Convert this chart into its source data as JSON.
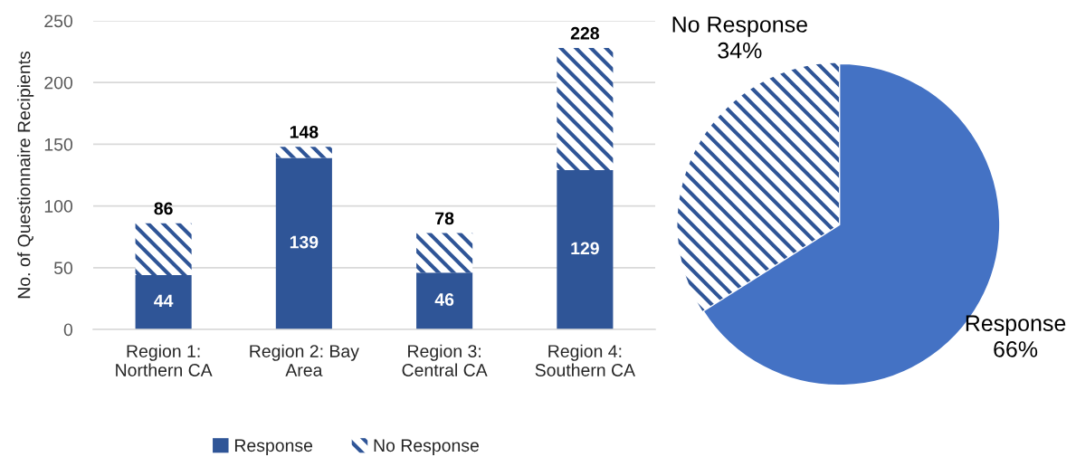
{
  "chart_data": [
    {
      "type": "bar",
      "stacked": true,
      "ylabel": "No. of Questionnaire Recipients",
      "categories": [
        "Region 1:\nNorthern CA",
        "Region 2: Bay\nArea",
        "Region 3:\nCentral CA",
        "Region 4:\nSouthern CA"
      ],
      "series": [
        {
          "name": "Response",
          "color": "#2f5597",
          "values": [
            44,
            139,
            46,
            129
          ],
          "value_labels": [
            "44",
            "139",
            "46",
            "129"
          ]
        },
        {
          "name": "No Response",
          "color": "#2f5597",
          "values": [
            42,
            9,
            32,
            99
          ]
        }
      ],
      "totals": [
        "86",
        "148",
        "78",
        "228"
      ],
      "ylim": [
        0,
        250
      ],
      "yticks": [
        0,
        50,
        100,
        150,
        200,
        250
      ],
      "grid": "y",
      "legend": "bottom"
    },
    {
      "type": "pie",
      "categories": [
        "Response",
        "No Response"
      ],
      "values": [
        66,
        34
      ],
      "colors": [
        "#4472c4",
        "#2f5597"
      ],
      "value_labels": [
        "66%",
        "34%"
      ]
    }
  ]
}
